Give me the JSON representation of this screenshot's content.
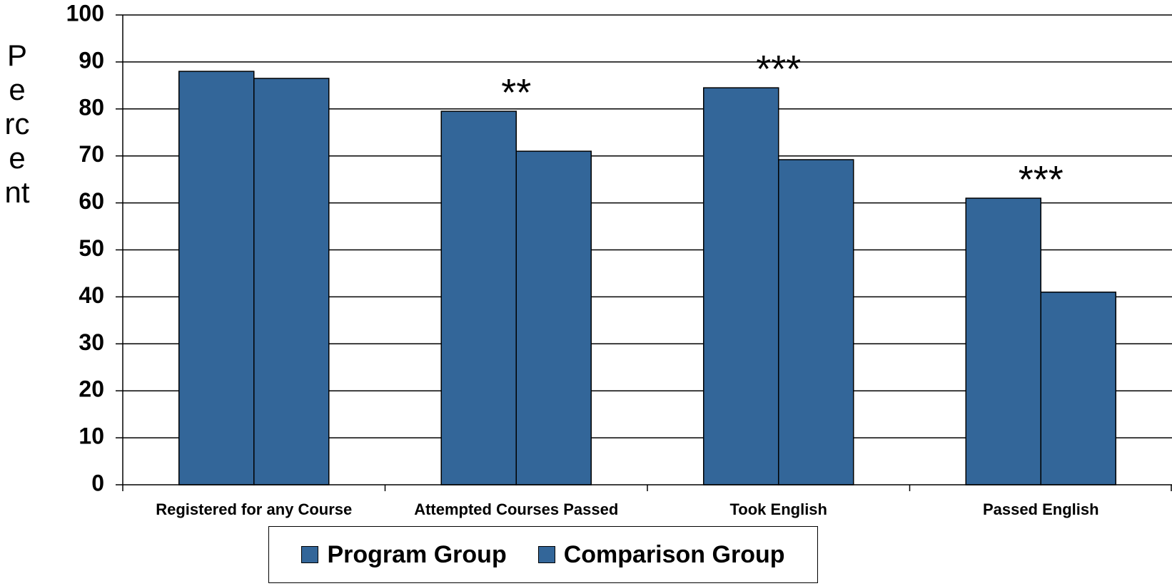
{
  "chart_data": {
    "type": "bar",
    "ylabel": "Percent",
    "xlabel": "",
    "ylim": [
      0,
      100
    ],
    "yticks": [
      0,
      10,
      20,
      30,
      40,
      50,
      60,
      70,
      80,
      90,
      100
    ],
    "grid": true,
    "legend_position": "bottom-center",
    "categories": [
      "Registered for any Course",
      "Attempted Courses Passed",
      "Took English",
      "Passed English"
    ],
    "series": [
      {
        "name": "Program Group",
        "values": [
          88,
          79.5,
          84.5,
          61
        ],
        "color": "#336699"
      },
      {
        "name": "Comparison Group",
        "values": [
          86.5,
          71,
          69.2,
          41
        ],
        "color": "#336699"
      }
    ],
    "annotations": [
      "",
      "**",
      "***",
      "***"
    ]
  }
}
